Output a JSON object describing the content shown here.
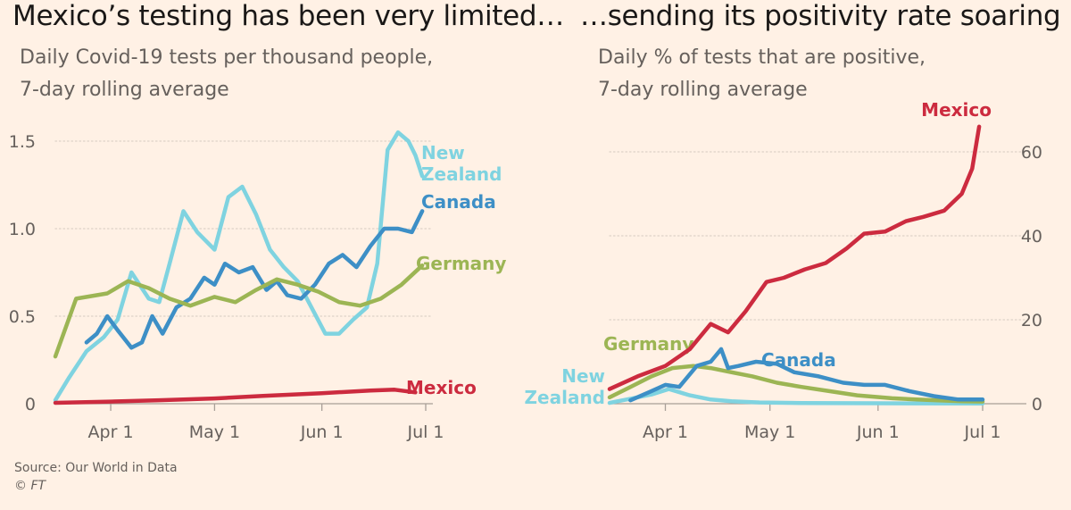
{
  "source": "Source: Our World in Data",
  "copyright": "© FT",
  "chart_data": [
    {
      "type": "line",
      "title": "Mexico’s testing has been very limited…",
      "subtitle_line1": "Daily Covid-19 tests per thousand people,",
      "subtitle_line2": "7-day rolling average",
      "xlabel": "",
      "ylabel": "",
      "x_ticks": [
        "Apr 1",
        "May 1",
        "Jun 1",
        "Jul 1"
      ],
      "y_ticks": [
        "0",
        "0.5",
        "1.0",
        "1.5"
      ],
      "y_tick_values": [
        0,
        0.5,
        1.0,
        1.5
      ],
      "ylim": [
        0,
        1.6
      ],
      "xlim": [
        "2020-03-16",
        "2020-07-01"
      ],
      "grid": true,
      "series": [
        {
          "name": "New Zealand",
          "label_line1": "New",
          "label_line2": "Zealand",
          "color": "#7fd3e0",
          "x": [
            "2020-03-16",
            "2020-03-20",
            "2020-03-25",
            "2020-03-30",
            "2020-04-03",
            "2020-04-07",
            "2020-04-12",
            "2020-04-15",
            "2020-04-18",
            "2020-04-22",
            "2020-04-26",
            "2020-05-01",
            "2020-05-05",
            "2020-05-09",
            "2020-05-13",
            "2020-05-17",
            "2020-05-21",
            "2020-05-25",
            "2020-05-29",
            "2020-06-02",
            "2020-06-06",
            "2020-06-10",
            "2020-06-14",
            "2020-06-17",
            "2020-06-20",
            "2020-06-23",
            "2020-06-26",
            "2020-06-28",
            "2020-06-30"
          ],
          "values": [
            0.02,
            0.15,
            0.3,
            0.38,
            0.48,
            0.75,
            0.6,
            0.58,
            0.8,
            1.1,
            0.98,
            0.88,
            1.18,
            1.24,
            1.08,
            0.88,
            0.78,
            0.7,
            0.55,
            0.4,
            0.4,
            0.48,
            0.55,
            0.8,
            1.45,
            1.55,
            1.5,
            1.42,
            1.3
          ]
        },
        {
          "name": "Canada",
          "color": "#3d8fc6",
          "x": [
            "2020-03-25",
            "2020-03-28",
            "2020-03-31",
            "2020-04-03",
            "2020-04-07",
            "2020-04-10",
            "2020-04-13",
            "2020-04-16",
            "2020-04-20",
            "2020-04-24",
            "2020-04-28",
            "2020-05-01",
            "2020-05-04",
            "2020-05-08",
            "2020-05-12",
            "2020-05-16",
            "2020-05-19",
            "2020-05-22",
            "2020-05-26",
            "2020-05-30",
            "2020-06-03",
            "2020-06-07",
            "2020-06-11",
            "2020-06-15",
            "2020-06-19",
            "2020-06-23",
            "2020-06-27",
            "2020-06-30"
          ],
          "values": [
            0.35,
            0.4,
            0.5,
            0.42,
            0.32,
            0.35,
            0.5,
            0.4,
            0.55,
            0.6,
            0.72,
            0.68,
            0.8,
            0.75,
            0.78,
            0.65,
            0.7,
            0.62,
            0.6,
            0.68,
            0.8,
            0.85,
            0.78,
            0.9,
            1.0,
            1.0,
            0.98,
            1.1
          ]
        },
        {
          "name": "Germany",
          "color": "#9cb554",
          "x": [
            "2020-03-16",
            "2020-03-22",
            "2020-03-31",
            "2020-04-06",
            "2020-04-12",
            "2020-04-18",
            "2020-04-24",
            "2020-05-01",
            "2020-05-07",
            "2020-05-13",
            "2020-05-19",
            "2020-05-25",
            "2020-05-31",
            "2020-06-06",
            "2020-06-12",
            "2020-06-18",
            "2020-06-24",
            "2020-06-30"
          ],
          "values": [
            0.27,
            0.6,
            0.63,
            0.7,
            0.66,
            0.6,
            0.56,
            0.61,
            0.58,
            0.65,
            0.71,
            0.68,
            0.64,
            0.58,
            0.56,
            0.6,
            0.68,
            0.79
          ]
        },
        {
          "name": "Mexico",
          "color": "#cc2b3f",
          "x": [
            "2020-03-16",
            "2020-04-01",
            "2020-04-15",
            "2020-05-01",
            "2020-05-15",
            "2020-06-01",
            "2020-06-15",
            "2020-06-22",
            "2020-06-28"
          ],
          "values": [
            0.005,
            0.012,
            0.02,
            0.03,
            0.045,
            0.06,
            0.075,
            0.08,
            0.065
          ]
        }
      ]
    },
    {
      "type": "line",
      "title": "…sending its positivity rate soaring",
      "subtitle_line1": "Daily % of tests that are positive,",
      "subtitle_line2": "7-day rolling average",
      "xlabel": "",
      "ylabel": "",
      "x_ticks": [
        "Apr 1",
        "May 1",
        "Jun 1",
        "Jul 1"
      ],
      "y_ticks": [
        "0",
        "20",
        "40",
        "60"
      ],
      "y_tick_values": [
        0,
        20,
        40,
        60
      ],
      "y_axis_side": "right",
      "ylim": [
        0,
        68
      ],
      "xlim": [
        "2020-03-16",
        "2020-07-01"
      ],
      "grid": true,
      "series": [
        {
          "name": "New Zealand",
          "label_line1": "New",
          "label_line2": "Zealand",
          "color": "#7fd3e0",
          "x": [
            "2020-03-16",
            "2020-03-22",
            "2020-03-28",
            "2020-04-02",
            "2020-04-08",
            "2020-04-14",
            "2020-04-20",
            "2020-04-28",
            "2020-05-10",
            "2020-06-01",
            "2020-07-01"
          ],
          "values": [
            0.2,
            1.2,
            2.2,
            3.5,
            2.0,
            1.0,
            0.6,
            0.3,
            0.15,
            0.1,
            0.05
          ]
        },
        {
          "name": "Germany",
          "color": "#9cb554",
          "x": [
            "2020-03-16",
            "2020-03-22",
            "2020-03-28",
            "2020-04-03",
            "2020-04-09",
            "2020-04-14",
            "2020-04-20",
            "2020-04-26",
            "2020-05-03",
            "2020-05-10",
            "2020-05-18",
            "2020-05-26",
            "2020-06-05",
            "2020-06-15",
            "2020-06-25",
            "2020-07-01"
          ],
          "values": [
            1.5,
            4.0,
            6.5,
            8.5,
            9.0,
            8.5,
            7.5,
            6.5,
            5.0,
            4.0,
            3.0,
            2.0,
            1.3,
            0.9,
            0.6,
            0.5
          ]
        },
        {
          "name": "Canada",
          "color": "#3d8fc6",
          "x": [
            "2020-03-22",
            "2020-03-28",
            "2020-04-01",
            "2020-04-05",
            "2020-04-10",
            "2020-04-14",
            "2020-04-17",
            "2020-04-19",
            "2020-04-22",
            "2020-04-27",
            "2020-05-03",
            "2020-05-08",
            "2020-05-15",
            "2020-05-22",
            "2020-05-28",
            "2020-06-03",
            "2020-06-10",
            "2020-06-17",
            "2020-06-24",
            "2020-07-01"
          ],
          "values": [
            0.8,
            3.0,
            4.5,
            4.0,
            9.0,
            10.0,
            13.0,
            8.5,
            9.0,
            10.0,
            9.5,
            7.5,
            6.5,
            5.0,
            4.5,
            4.5,
            3.0,
            1.8,
            1.0,
            1.0
          ]
        },
        {
          "name": "Mexico",
          "color": "#cc2b3f",
          "x": [
            "2020-03-16",
            "2020-03-24",
            "2020-04-01",
            "2020-04-08",
            "2020-04-14",
            "2020-04-19",
            "2020-04-24",
            "2020-04-30",
            "2020-05-05",
            "2020-05-11",
            "2020-05-17",
            "2020-05-23",
            "2020-05-28",
            "2020-06-03",
            "2020-06-09",
            "2020-06-14",
            "2020-06-20",
            "2020-06-25",
            "2020-06-28",
            "2020-06-30"
          ],
          "values": [
            3.5,
            6.5,
            9.0,
            13.0,
            19.0,
            17.0,
            22.0,
            29.0,
            30.0,
            32.0,
            33.5,
            37.0,
            40.5,
            41.0,
            43.5,
            44.5,
            46.0,
            50.0,
            56.0,
            66.0
          ]
        }
      ]
    }
  ]
}
